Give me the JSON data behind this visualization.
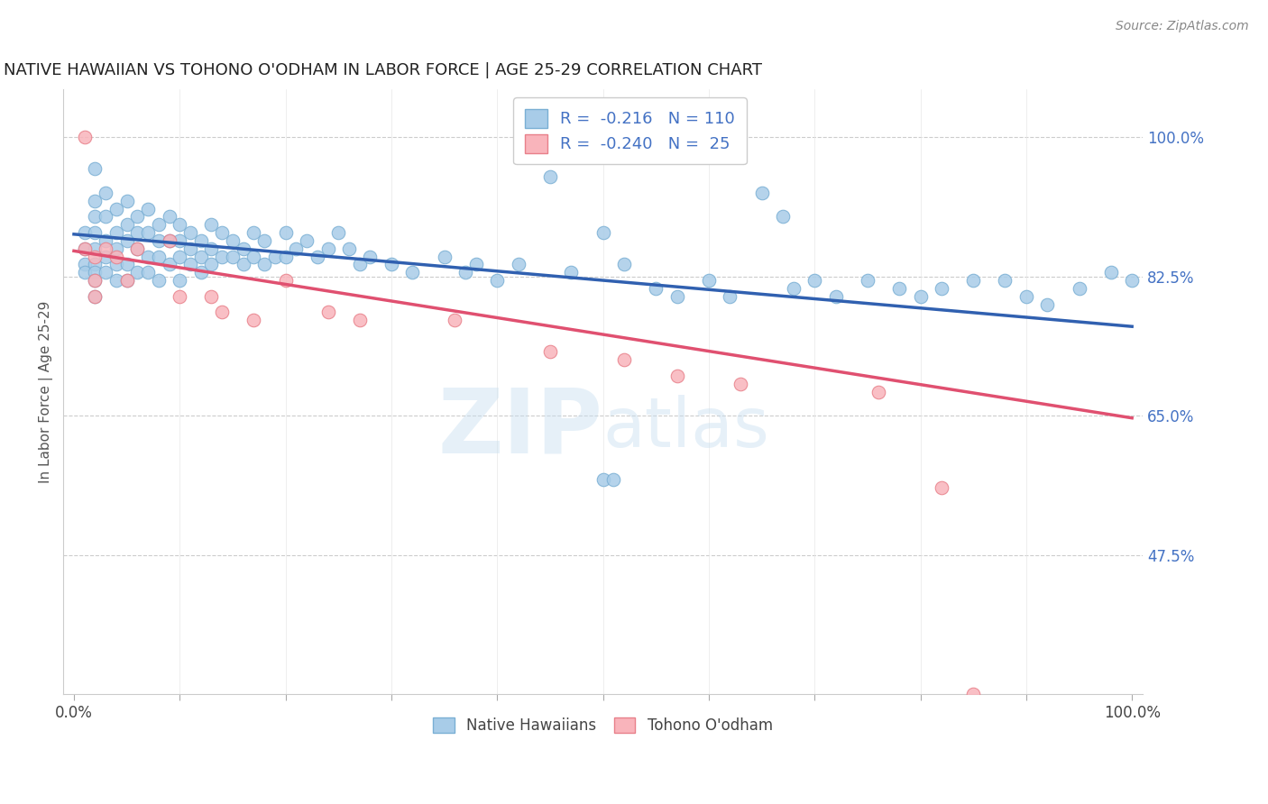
{
  "title": "NATIVE HAWAIIAN VS TOHONO O'ODHAM IN LABOR FORCE | AGE 25-29 CORRELATION CHART",
  "source": "Source: ZipAtlas.com",
  "ylabel": "In Labor Force | Age 25-29",
  "blue_color": "#a8cce8",
  "blue_edge_color": "#7aafd4",
  "pink_color": "#f9b4bb",
  "pink_edge_color": "#e8808a",
  "blue_line_color": "#3060b0",
  "pink_line_color": "#e05070",
  "blue_r": -0.216,
  "blue_n": 110,
  "pink_r": -0.24,
  "pink_n": 25,
  "watermark": "ZIPatlas",
  "xlim": [
    -0.01,
    1.01
  ],
  "ylim": [
    0.3,
    1.06
  ],
  "y_ticks_right": [
    1.0,
    0.825,
    0.65,
    0.475
  ],
  "y_tick_labels_right": [
    "100.0%",
    "82.5%",
    "65.0%",
    "47.5%"
  ],
  "x_ticks": [
    0.0,
    0.1,
    0.2,
    0.3,
    0.4,
    0.5,
    0.6,
    0.7,
    0.8,
    0.9,
    1.0
  ],
  "x_tick_labels": [
    "0.0%",
    "",
    "",
    "",
    "",
    "",
    "",
    "",
    "",
    "",
    "100.0%"
  ],
  "blue_trend_start": 0.878,
  "blue_trend_end": 0.762,
  "pink_trend_start": 0.857,
  "pink_trend_end": 0.647,
  "blue_scatter_x": [
    0.01,
    0.01,
    0.01,
    0.01,
    0.02,
    0.02,
    0.02,
    0.02,
    0.02,
    0.02,
    0.02,
    0.02,
    0.02,
    0.03,
    0.03,
    0.03,
    0.03,
    0.03,
    0.04,
    0.04,
    0.04,
    0.04,
    0.04,
    0.05,
    0.05,
    0.05,
    0.05,
    0.05,
    0.06,
    0.06,
    0.06,
    0.06,
    0.07,
    0.07,
    0.07,
    0.07,
    0.08,
    0.08,
    0.08,
    0.08,
    0.09,
    0.09,
    0.09,
    0.1,
    0.1,
    0.1,
    0.1,
    0.11,
    0.11,
    0.11,
    0.12,
    0.12,
    0.12,
    0.13,
    0.13,
    0.13,
    0.14,
    0.14,
    0.15,
    0.15,
    0.16,
    0.16,
    0.17,
    0.17,
    0.18,
    0.18,
    0.19,
    0.2,
    0.2,
    0.21,
    0.22,
    0.23,
    0.24,
    0.25,
    0.26,
    0.27,
    0.28,
    0.3,
    0.32,
    0.35,
    0.37,
    0.38,
    0.4,
    0.42,
    0.45,
    0.47,
    0.5,
    0.52,
    0.55,
    0.57,
    0.6,
    0.62,
    0.65,
    0.67,
    0.68,
    0.7,
    0.72,
    0.75,
    0.78,
    0.8,
    0.82,
    0.85,
    0.88,
    0.9,
    0.92,
    0.95,
    0.98,
    1.0,
    0.5,
    0.51
  ],
  "blue_scatter_y": [
    0.86,
    0.84,
    0.83,
    0.88,
    0.96,
    0.92,
    0.9,
    0.88,
    0.86,
    0.84,
    0.83,
    0.82,
    0.8,
    0.93,
    0.9,
    0.87,
    0.85,
    0.83,
    0.91,
    0.88,
    0.86,
    0.84,
    0.82,
    0.92,
    0.89,
    0.87,
    0.84,
    0.82,
    0.9,
    0.88,
    0.86,
    0.83,
    0.91,
    0.88,
    0.85,
    0.83,
    0.89,
    0.87,
    0.85,
    0.82,
    0.9,
    0.87,
    0.84,
    0.89,
    0.87,
    0.85,
    0.82,
    0.88,
    0.86,
    0.84,
    0.87,
    0.85,
    0.83,
    0.89,
    0.86,
    0.84,
    0.88,
    0.85,
    0.87,
    0.85,
    0.86,
    0.84,
    0.88,
    0.85,
    0.87,
    0.84,
    0.85,
    0.88,
    0.85,
    0.86,
    0.87,
    0.85,
    0.86,
    0.88,
    0.86,
    0.84,
    0.85,
    0.84,
    0.83,
    0.85,
    0.83,
    0.84,
    0.82,
    0.84,
    0.95,
    0.83,
    0.88,
    0.84,
    0.81,
    0.8,
    0.82,
    0.8,
    0.93,
    0.9,
    0.81,
    0.82,
    0.8,
    0.82,
    0.81,
    0.8,
    0.81,
    0.82,
    0.82,
    0.8,
    0.79,
    0.81,
    0.83,
    0.82,
    0.57,
    0.57
  ],
  "pink_scatter_x": [
    0.01,
    0.01,
    0.02,
    0.02,
    0.02,
    0.03,
    0.04,
    0.05,
    0.06,
    0.09,
    0.1,
    0.13,
    0.14,
    0.17,
    0.2,
    0.24,
    0.27,
    0.36,
    0.45,
    0.52,
    0.57,
    0.63,
    0.76,
    0.82,
    0.85
  ],
  "pink_scatter_y": [
    1.0,
    0.86,
    0.85,
    0.82,
    0.8,
    0.86,
    0.85,
    0.82,
    0.86,
    0.87,
    0.8,
    0.8,
    0.78,
    0.77,
    0.82,
    0.78,
    0.77,
    0.77,
    0.73,
    0.72,
    0.7,
    0.69,
    0.68,
    0.56,
    0.3
  ]
}
